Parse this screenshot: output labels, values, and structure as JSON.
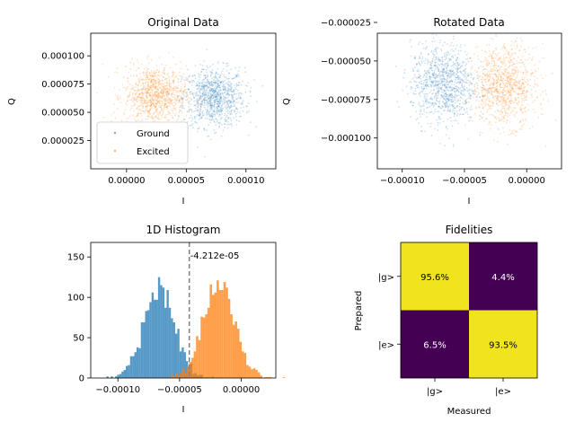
{
  "colors": {
    "ground": "#1f77b4",
    "excited": "#ff7f0e",
    "threshold": "#808080",
    "cell_high": "#f0e41e",
    "cell_low": "#440154"
  },
  "chart_data": [
    {
      "type": "scatter",
      "title": "Original Data",
      "xlabel": "I",
      "ylabel": "Q",
      "xlim": [
        -3e-05,
        0.000125
      ],
      "ylim": [
        0.0,
        0.00012
      ],
      "xticks": [
        {
          "v": 0.0,
          "label": "0.00000"
        },
        {
          "v": 5e-05,
          "label": "0.00005"
        },
        {
          "v": 0.0001,
          "label": "0.00010"
        }
      ],
      "yticks": [
        {
          "v": 2.5e-05,
          "label": "0.000025"
        },
        {
          "v": 5e-05,
          "label": "0.000050"
        },
        {
          "v": 7.5e-05,
          "label": "0.000075"
        },
        {
          "v": 0.0001,
          "label": "0.000100"
        }
      ],
      "legend": {
        "position": "lower-left",
        "entries": [
          "Ground",
          "Excited"
        ]
      },
      "series": [
        {
          "name": "Ground",
          "color": "#1f77b4",
          "center": [
            7.3e-05,
            6.3e-05
          ],
          "std": [
            1.3e-05,
            1.3e-05
          ],
          "n": 1000
        },
        {
          "name": "Excited",
          "color": "#ff7f0e",
          "center": [
            2.4e-05,
            6.5e-05
          ],
          "std": [
            1.3e-05,
            1.3e-05
          ],
          "n": 1000
        }
      ]
    },
    {
      "type": "scatter",
      "title": "Rotated Data",
      "xlabel": "I",
      "ylabel": "Q",
      "xlim": [
        -0.00012,
        2.8e-05
      ],
      "ylim": [
        -0.00012,
        -3.2e-05
      ],
      "xticks": [
        {
          "v": -0.0001,
          "label": "−0.00010"
        },
        {
          "v": -5e-05,
          "label": "−0.00005"
        },
        {
          "v": 0.0,
          "label": "0.00000"
        }
      ],
      "yticks": [
        {
          "v": -0.0001,
          "label": "−0.000100"
        },
        {
          "v": -7.5e-05,
          "label": "−0.000075"
        },
        {
          "v": -5e-05,
          "label": "−0.000050"
        },
        {
          "v": -2.5e-05,
          "label": "−0.000025"
        }
      ],
      "series": [
        {
          "name": "Ground",
          "color": "#1f77b4",
          "center": [
            -6.7e-05,
            -6.5e-05
          ],
          "std": [
            1.3e-05,
            1.3e-05
          ],
          "n": 1000
        },
        {
          "name": "Excited",
          "color": "#ff7f0e",
          "center": [
            -1.8e-05,
            -6.6e-05
          ],
          "std": [
            1.3e-05,
            1.3e-05
          ],
          "n": 1000
        }
      ]
    },
    {
      "type": "bar",
      "title": "1D Histogram",
      "xlabel": "I",
      "ylabel": "",
      "xlim": [
        -0.000122,
        2.8e-05
      ],
      "ylim": [
        0,
        168
      ],
      "xticks": [
        {
          "v": -0.0001,
          "label": "−0.00010"
        },
        {
          "v": -5e-05,
          "label": "−0.00005"
        },
        {
          "v": 0.0,
          "label": "0.00000"
        }
      ],
      "yticks": [
        {
          "v": 0,
          "label": "0"
        },
        {
          "v": 50,
          "label": "50"
        },
        {
          "v": 100,
          "label": "100"
        },
        {
          "v": 150,
          "label": "150"
        }
      ],
      "threshold": -4.212e-05,
      "threshold_label": "-4.212e-05",
      "series": [
        {
          "name": "Ground",
          "color": "#1f77b4",
          "center": -6.7e-05,
          "std": 1.25e-05,
          "n": 2000,
          "bins": 50
        },
        {
          "name": "Excited",
          "color": "#ff7f0e",
          "center": -1.8e-05,
          "std": 1.25e-05,
          "n": 2000,
          "bins": 50
        }
      ]
    },
    {
      "type": "heatmap",
      "title": "Fidelities",
      "xlabel": "Measured",
      "ylabel": "Prepared",
      "x_categories": [
        "|g>",
        "|e>"
      ],
      "y_categories": [
        "|g>",
        "|e>"
      ],
      "values": [
        [
          95.6,
          4.4
        ],
        [
          6.5,
          93.5
        ]
      ],
      "labels": [
        [
          "95.6%",
          "4.4%"
        ],
        [
          "6.5%",
          "93.5%"
        ]
      ]
    }
  ]
}
